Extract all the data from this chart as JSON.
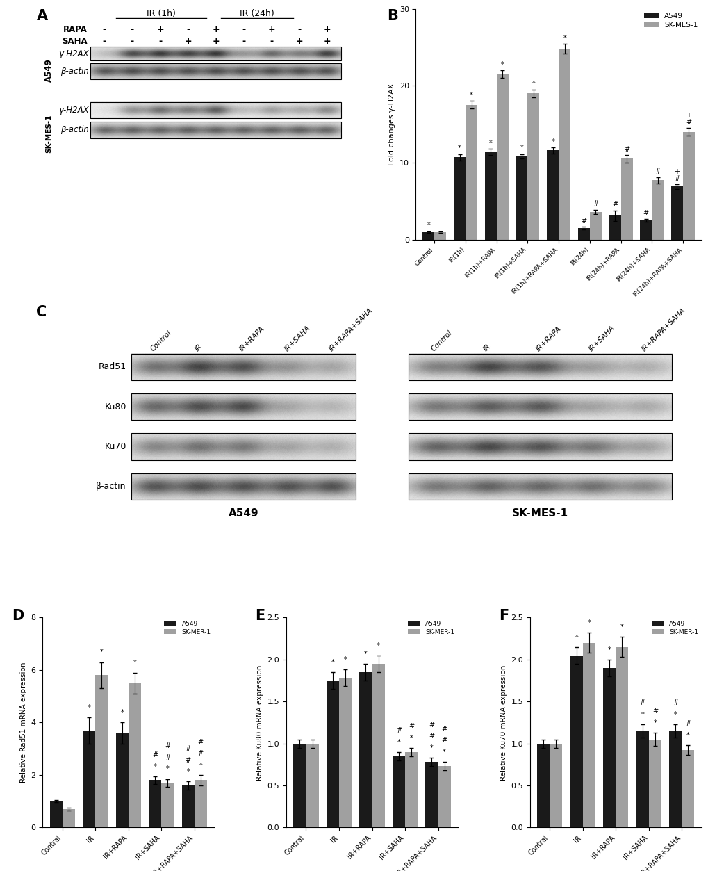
{
  "panel_B": {
    "categories": [
      "Control",
      "IR(1h)",
      "IR(1h)+RAPA",
      "IR(1h)+SAHA",
      "IR(1h)+RAPA+SAHA",
      "IR(24h)",
      "IR(24h)+RAPA",
      "IR(24h)+SAHA",
      "IR(24h)+RAPA+SAHA"
    ],
    "A549": [
      1.0,
      10.7,
      11.4,
      10.8,
      11.6,
      1.5,
      3.1,
      2.5,
      6.9
    ],
    "A549_err": [
      0.1,
      0.4,
      0.4,
      0.3,
      0.4,
      0.2,
      0.7,
      0.2,
      0.3
    ],
    "SKMES1": [
      1.0,
      17.5,
      21.5,
      19.0,
      24.8,
      3.6,
      10.5,
      7.7,
      14.0
    ],
    "SKMES1_err": [
      0.1,
      0.5,
      0.5,
      0.5,
      0.6,
      0.3,
      0.5,
      0.4,
      0.5
    ],
    "ylabel": "Fold changes γ-H2AX",
    "ylim": [
      0,
      30
    ],
    "yticks": [
      0,
      10,
      20,
      30
    ],
    "A549_sig": [
      "*",
      "*",
      "*",
      "*",
      "*",
      "#",
      "#",
      "#",
      "#,+"
    ],
    "SKMES1_sig": [
      "",
      "*",
      "*",
      "*",
      "*",
      "#",
      "#",
      "#",
      "#,+"
    ]
  },
  "panel_D": {
    "categories": [
      "Contral",
      "IR",
      "IR+RAPA",
      "IR+SAHA",
      "IR+RAPA+SAHA"
    ],
    "A549": [
      1.0,
      3.7,
      3.6,
      1.8,
      1.6
    ],
    "A549_err": [
      0.05,
      0.5,
      0.4,
      0.15,
      0.15
    ],
    "SKMES1": [
      0.7,
      5.8,
      5.5,
      1.7,
      1.8
    ],
    "SKMES1_err": [
      0.05,
      0.5,
      0.4,
      0.15,
      0.2
    ],
    "ylabel": "Relative Rad51 mRNA expression",
    "ylim": [
      0,
      8
    ],
    "yticks": [
      0,
      2,
      4,
      6,
      8
    ],
    "A549_sig": [
      "",
      "*",
      "*",
      "*,#",
      "*,#,#"
    ],
    "SKMES1_sig": [
      "",
      "*",
      "*",
      "*,#,#",
      "*,#,#"
    ]
  },
  "panel_E": {
    "categories": [
      "Contral",
      "IR",
      "IR+RAPA",
      "IR+SAHA",
      "IR+RAPA+SAHA"
    ],
    "A549": [
      1.0,
      1.75,
      1.85,
      0.85,
      0.78
    ],
    "A549_err": [
      0.05,
      0.1,
      0.1,
      0.05,
      0.05
    ],
    "SKMES1": [
      1.0,
      1.78,
      1.95,
      0.9,
      0.73
    ],
    "SKMES1_err": [
      0.05,
      0.1,
      0.1,
      0.05,
      0.05
    ],
    "ylabel": "Relative Ku80 mRNA expression",
    "ylim": [
      0.0,
      2.5
    ],
    "yticks": [
      0.0,
      0.5,
      1.0,
      1.5,
      2.0,
      2.5
    ],
    "A549_sig": [
      "",
      "*",
      "*",
      "*,#",
      "*,#,#"
    ],
    "SKMES1_sig": [
      "",
      "*",
      "*",
      "*,#",
      "*,#,#"
    ]
  },
  "panel_F": {
    "categories": [
      "Contral",
      "IR",
      "IR+RAPA",
      "IR+SAHA",
      "IR+RAPA+SAHA"
    ],
    "A549": [
      1.0,
      2.05,
      1.9,
      1.15,
      1.15
    ],
    "A549_err": [
      0.05,
      0.1,
      0.1,
      0.08,
      0.08
    ],
    "SKMES1": [
      1.0,
      2.2,
      2.15,
      1.05,
      0.92
    ],
    "SKMES1_err": [
      0.05,
      0.12,
      0.12,
      0.08,
      0.06
    ],
    "ylabel": "Relative Ku70 mRNA expression",
    "ylim": [
      0.0,
      2.5
    ],
    "yticks": [
      0.0,
      0.5,
      1.0,
      1.5,
      2.0,
      2.5
    ],
    "A549_sig": [
      "",
      "*",
      "*",
      "*,#",
      "*,#"
    ],
    "SKMES1_sig": [
      "",
      "*",
      "*",
      "*,#",
      "*,#"
    ]
  },
  "colors": {
    "A549": "#1a1a1a",
    "SKMES1": "#a0a0a0",
    "background": "#ffffff"
  }
}
